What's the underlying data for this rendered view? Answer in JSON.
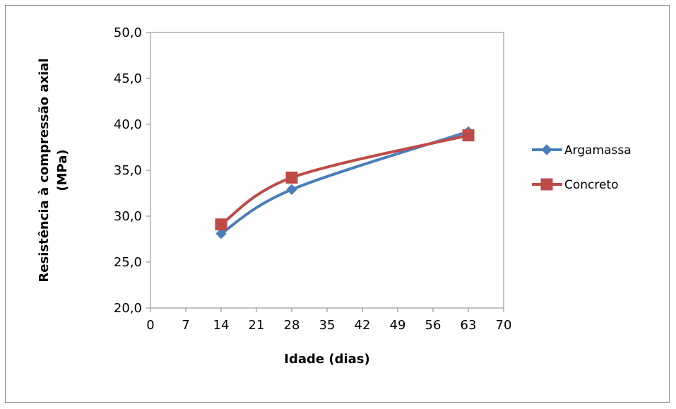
{
  "chart_data": {
    "type": "line",
    "title": "",
    "xlabel": "Idade (dias)",
    "ylabel_line1": "Resistência à compressão axial",
    "ylabel_line2": "(MPa)",
    "xlim": [
      0,
      70
    ],
    "ylim": [
      20,
      50
    ],
    "xticks": [
      0,
      7,
      14,
      21,
      28,
      35,
      42,
      49,
      56,
      63,
      70
    ],
    "yticks": [
      20,
      25,
      30,
      35,
      40,
      45,
      50
    ],
    "ytick_labels": [
      "20,0",
      "25,0",
      "30,0",
      "35,0",
      "40,0",
      "45,0",
      "50,0"
    ],
    "grid": false,
    "smoothed": true,
    "legend_position": "right",
    "series": [
      {
        "name": "Argamassa",
        "marker": "diamond",
        "color": "#4a7ebb",
        "x": [
          14,
          28,
          63
        ],
        "y": [
          28.1,
          32.9,
          39.2
        ]
      },
      {
        "name": "Concreto",
        "marker": "square",
        "color": "#be4b48",
        "x": [
          14,
          28,
          63
        ],
        "y": [
          29.1,
          34.2,
          38.8
        ]
      }
    ]
  }
}
